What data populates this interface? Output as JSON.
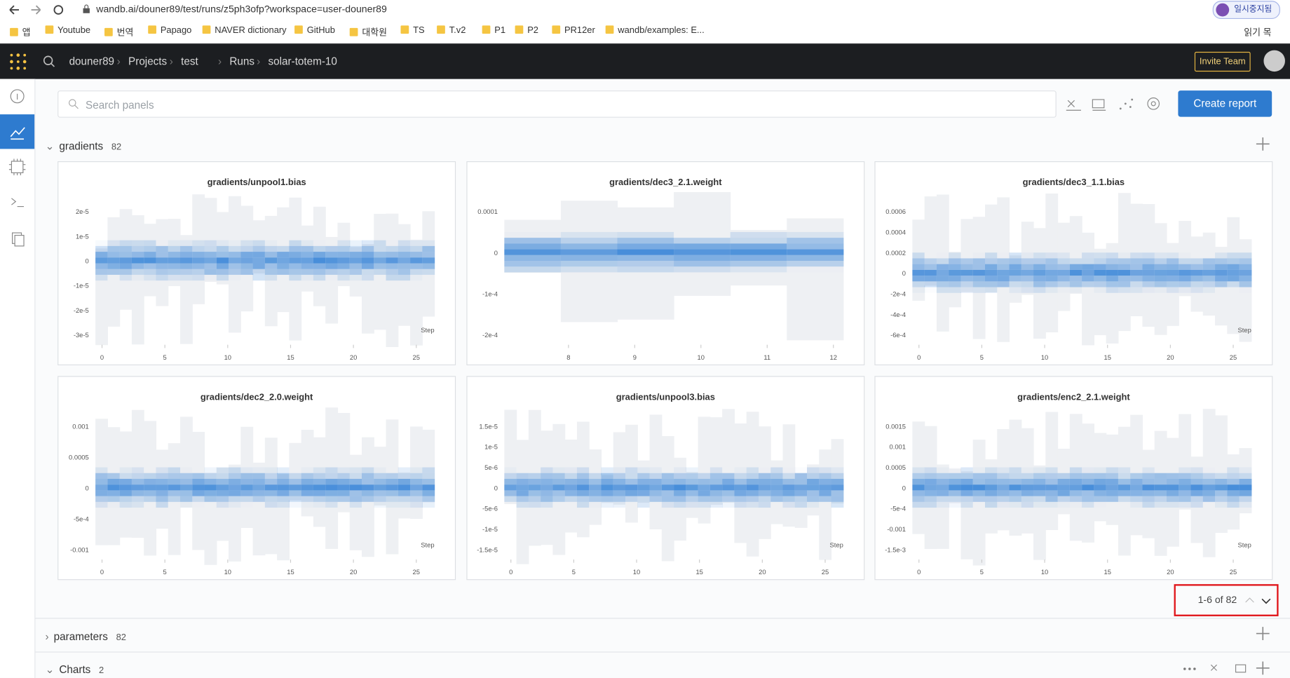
{
  "browser": {
    "url": "wandb.ai/douner89/test/runs/z5ph3ofp?workspace=user-douner89",
    "profile": "일시중지됨",
    "reading_list": "읽기 목",
    "bookmarks": [
      "앱",
      "Youtube",
      "번역",
      "Papago",
      "NAVER dictionary",
      "GitHub",
      "대학원",
      "TS",
      "T.v2",
      "P1",
      "P2",
      "PR12er",
      "wandb/examples: E..."
    ]
  },
  "nav": {
    "breadcrumb": [
      "douner89",
      "Projects",
      "test",
      "Runs",
      "solar-totem-10"
    ],
    "invite": "Invite Team"
  },
  "toolbar": {
    "search_placeholder": "Search panels",
    "create_report": "Create report"
  },
  "sections": [
    {
      "name": "gradients",
      "count": "82"
    },
    {
      "name": "parameters",
      "count": "82"
    },
    {
      "name": "Charts",
      "count": "2"
    }
  ],
  "panels": [
    {
      "title": "gradients/unpool1.bias",
      "yticks": [
        "2e-5",
        "1e-5",
        "0",
        "-1e-5",
        "-2e-5",
        "-3e-5"
      ],
      "xticks": [
        "0",
        "5",
        "10",
        "15",
        "20",
        "25"
      ],
      "xlabel": "Step"
    },
    {
      "title": "gradients/dec3_2.1.weight",
      "yticks": [
        "0.0001",
        "0",
        "-1e-4",
        "-2e-4"
      ],
      "xticks": [
        "8",
        "9",
        "10",
        "11",
        "12"
      ]
    },
    {
      "title": "gradients/dec3_1.1.bias",
      "yticks": [
        "0.0006",
        "0.0004",
        "0.0002",
        "0",
        "-2e-4",
        "-4e-4",
        "-6e-4"
      ],
      "xticks": [
        "0",
        "5",
        "10",
        "15",
        "20",
        "25"
      ],
      "xlabel": "Step"
    },
    {
      "title": "gradients/dec2_2.0.weight",
      "yticks": [
        "0.001",
        "0.0005",
        "0",
        "-5e-4",
        "-0.001"
      ],
      "xticks": [
        "0",
        "5",
        "10",
        "15",
        "20",
        "25"
      ],
      "xlabel": "Step"
    },
    {
      "title": "gradients/unpool3.bias",
      "yticks": [
        "1.5e-5",
        "1e-5",
        "5e-6",
        "0",
        "-5e-6",
        "-1e-5",
        "-1.5e-5"
      ],
      "xticks": [
        "0",
        "5",
        "10",
        "15",
        "20",
        "25"
      ],
      "xlabel": "Step"
    },
    {
      "title": "gradients/enc2_2.1.weight",
      "yticks": [
        "0.0015",
        "0.001",
        "0.0005",
        "0",
        "-5e-4",
        "-0.001",
        "-1.5e-3"
      ],
      "xticks": [
        "0",
        "5",
        "10",
        "15",
        "20",
        "25"
      ],
      "xlabel": "Step"
    }
  ],
  "pagination": "1-6 of 82"
}
